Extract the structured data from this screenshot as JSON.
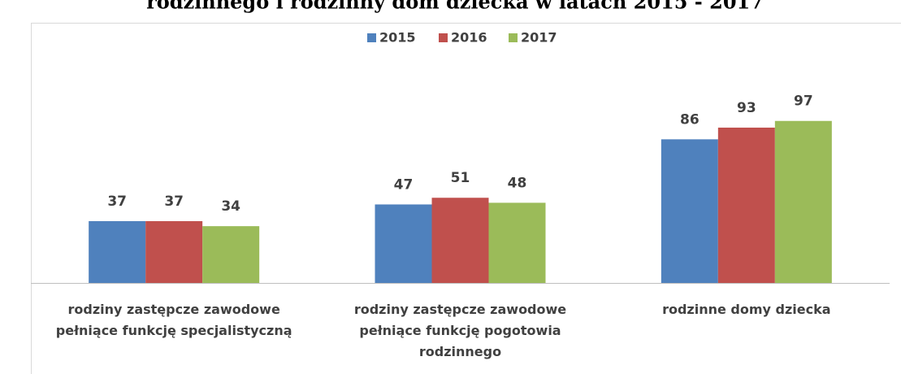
{
  "chart_data": {
    "type": "bar",
    "title": "rodzinnego i rodzinny dom dziecka w latach 2015 - 2017",
    "categories": [
      "rodziny zastępcze zawodowe pełniące funkcję specjalistyczną",
      "rodziny zastępcze zawodowe pełniące funkcję pogotowia rodzinnego",
      "rodzinne domy dziecka"
    ],
    "series": [
      {
        "name": "2015",
        "color": "#4f81bd",
        "values": [
          37,
          47,
          86
        ]
      },
      {
        "name": "2016",
        "color": "#c0504d",
        "values": [
          37,
          51,
          93
        ]
      },
      {
        "name": "2017",
        "color": "#9bbb59",
        "values": [
          34,
          48,
          97
        ]
      }
    ],
    "ylim": [
      0,
      120
    ],
    "legend": "top"
  }
}
